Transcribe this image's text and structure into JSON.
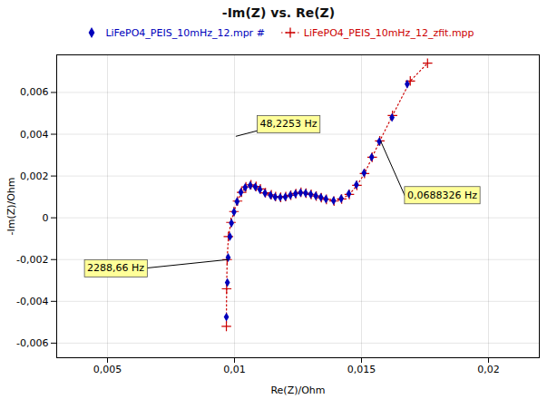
{
  "chart_data": {
    "type": "line",
    "title": "-Im(Z) vs. Re(Z)",
    "xlabel": "Re(Z)/Ohm",
    "ylabel": "-Im(Z)/Ohm",
    "xlim": [
      0.003,
      0.022
    ],
    "ylim": [
      -0.0067,
      0.0078
    ],
    "xticks": [
      {
        "value": 0.005,
        "label": "0,005"
      },
      {
        "value": 0.01,
        "label": "0,01"
      },
      {
        "value": 0.015,
        "label": "0,015"
      },
      {
        "value": 0.02,
        "label": "0,02"
      }
    ],
    "yticks": [
      {
        "value": -0.006,
        "label": "-0,006"
      },
      {
        "value": -0.004,
        "label": "-0,004"
      },
      {
        "value": -0.002,
        "label": "-0,002"
      },
      0,
      {
        "value": 0.002,
        "label": "0,002"
      },
      {
        "value": 0.004,
        "label": "0,004"
      },
      {
        "value": 0.006,
        "label": "0,006"
      }
    ],
    "grid": true,
    "legend": "top",
    "series": [
      {
        "name": "LiFePO4_PEIS_10mHz_12.mpr #",
        "type": "scatter",
        "color": "#0000bb",
        "marker": "diamond",
        "x": [
          0.00968,
          0.00972,
          0.00975,
          0.00982,
          0.00988,
          0.00998,
          0.0101,
          0.01025,
          0.01042,
          0.01062,
          0.01082,
          0.011,
          0.0112,
          0.01142,
          0.0116,
          0.0118,
          0.012,
          0.0122,
          0.0124,
          0.0126,
          0.0128,
          0.013,
          0.0132,
          0.0134,
          0.0136,
          0.0139,
          0.0142,
          0.0145,
          0.0148,
          0.0151,
          0.0154,
          0.0157,
          0.0162,
          0.0168
        ],
        "values": [
          -0.00475,
          -0.0031,
          -0.0019,
          -0.0009,
          -0.00025,
          0.00028,
          0.00078,
          0.00122,
          0.00145,
          0.00155,
          0.00148,
          0.00135,
          0.00118,
          0.00108,
          0.001,
          0.00098,
          0.001,
          0.00108,
          0.00115,
          0.0012,
          0.00118,
          0.00112,
          0.00105,
          0.00098,
          0.0009,
          0.00082,
          0.00092,
          0.00115,
          0.00158,
          0.00215,
          0.0029,
          0.00365,
          0.0048,
          0.0064
        ]
      },
      {
        "name": "LiFePO4_PEIS_10mHz_12_zfit.mpp",
        "type": "line",
        "color": "#cc0000",
        "marker": "plus",
        "line_style": "dotted",
        "x": [
          0.00968,
          0.00969,
          0.00971,
          0.00976,
          0.00986,
          0.00998,
          0.01012,
          0.01028,
          0.01045,
          0.01065,
          0.01085,
          0.01102,
          0.01122,
          0.01145,
          0.01162,
          0.01182,
          0.01202,
          0.01222,
          0.01242,
          0.01262,
          0.01282,
          0.01302,
          0.01322,
          0.01342,
          0.01362,
          0.01392,
          0.01422,
          0.01452,
          0.01482,
          0.01512,
          0.01542,
          0.01572,
          0.01622,
          0.01692,
          0.0176
        ],
        "values": [
          -0.0052,
          -0.0034,
          -0.002,
          -0.0009,
          -0.00022,
          0.0003,
          0.0008,
          0.00122,
          0.00148,
          0.00158,
          0.0015,
          0.00138,
          0.0012,
          0.0011,
          0.00102,
          0.00098,
          0.00102,
          0.00108,
          0.00116,
          0.00122,
          0.00118,
          0.00112,
          0.00104,
          0.00096,
          0.00088,
          0.0008,
          0.0009,
          0.00112,
          0.00155,
          0.00212,
          0.0029,
          0.00368,
          0.0049,
          0.00655,
          0.0074
        ]
      }
    ],
    "annotations": [
      {
        "text": "2288,66 Hz",
        "x": 0.00975,
        "y": -0.002,
        "text_x": 0.0042,
        "text_y": -0.0027
      },
      {
        "text": "48,2253 Hz",
        "x": 0.01005,
        "y": 0.0039,
        "text_x": 0.011,
        "text_y": 0.0042
      },
      {
        "text": "0,0688326 Hz",
        "x": 0.01575,
        "y": 0.00368,
        "text_x": 0.0168,
        "text_y": 0.0008
      }
    ]
  }
}
